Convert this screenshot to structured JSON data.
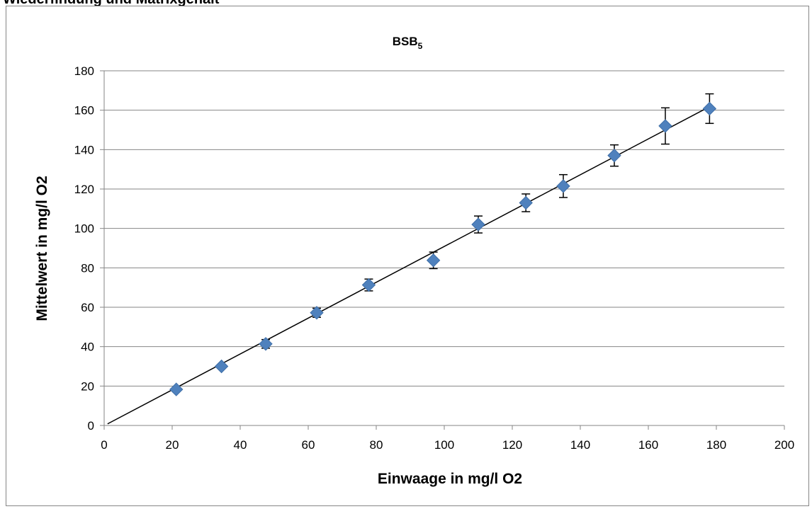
{
  "page": {
    "heading": "Wiederfindung und Matrixgehalt"
  },
  "chart_data": {
    "type": "scatter",
    "title": "BSB",
    "title_subscript": "5",
    "xlabel": "Einwaage in mg/l O2",
    "ylabel": "Mittelwert in mg/l O2",
    "xlim": [
      0,
      200
    ],
    "ylim": [
      0,
      180
    ],
    "x_ticks": [
      "0",
      "20",
      "40",
      "60",
      "80",
      "100",
      "120",
      "140",
      "160",
      "180",
      "200"
    ],
    "y_ticks": [
      "0",
      "20",
      "40",
      "60",
      "80",
      "100",
      "120",
      "140",
      "160",
      "180"
    ],
    "grid": "horizontal",
    "series": [
      {
        "marker": "diamond",
        "color": "#4f81bd",
        "points": [
          {
            "x": 21.2,
            "y": 18.3,
            "err": 1.0
          },
          {
            "x": 34.5,
            "y": 30.0,
            "err": 1.0
          },
          {
            "x": 47.5,
            "y": 41.4,
            "err": 2.2
          },
          {
            "x": 62.5,
            "y": 57.2,
            "err": 2.3
          },
          {
            "x": 77.8,
            "y": 71.3,
            "err": 3.0
          },
          {
            "x": 96.8,
            "y": 83.8,
            "err": 4.2
          },
          {
            "x": 110.0,
            "y": 102.0,
            "err": 4.3
          },
          {
            "x": 124.0,
            "y": 113.0,
            "err": 4.5
          },
          {
            "x": 135.0,
            "y": 121.5,
            "err": 5.8
          },
          {
            "x": 150.0,
            "y": 137.0,
            "err": 5.4
          },
          {
            "x": 165.0,
            "y": 152.0,
            "err": 9.2
          },
          {
            "x": 178.0,
            "y": 160.8,
            "err": 7.5
          }
        ]
      }
    ],
    "trendline": {
      "x": [
        1.0,
        178.0
      ],
      "y": [
        0.8,
        161.8
      ],
      "color": "#000000"
    }
  }
}
